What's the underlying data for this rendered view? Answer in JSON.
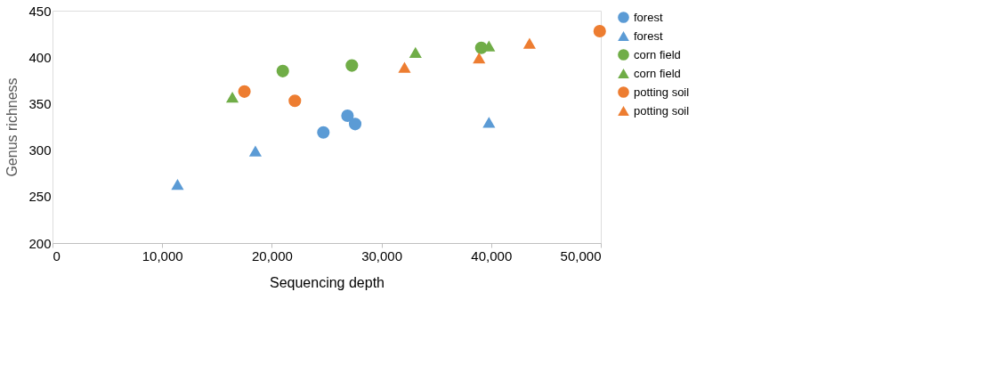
{
  "chart_data": {
    "type": "scatter",
    "xlabel": "Sequencing depth",
    "ylabel": "Genus richness",
    "xlim": [
      0,
      50000
    ],
    "xticks": [
      {
        "value": 0,
        "label": "0"
      },
      {
        "value": 10000,
        "label": "10,000"
      },
      {
        "value": 20000,
        "label": "20,000"
      },
      {
        "value": 30000,
        "label": "30,000"
      },
      {
        "value": 40000,
        "label": "40,000"
      },
      {
        "value": 50000,
        "label": "50,000"
      }
    ],
    "ylim": [
      200,
      450
    ],
    "yticks": [
      200,
      250,
      300,
      350,
      400,
      450
    ],
    "grid": false,
    "legend": "right",
    "series": [
      {
        "name": "forest",
        "color": "#5b9bd5",
        "marker": "circle",
        "x": [
          24700,
          26900,
          27600
        ],
        "values": [
          319,
          337,
          328
        ]
      },
      {
        "name": "forest",
        "color": "#5b9bd5",
        "marker": "triangle",
        "x": [
          11400,
          18500,
          39800
        ],
        "values": [
          263,
          299,
          330
        ]
      },
      {
        "name": "corn field",
        "color": "#70ad47",
        "marker": "circle",
        "x": [
          21000,
          27300,
          39100
        ],
        "values": [
          385,
          391,
          410
        ]
      },
      {
        "name": "corn field",
        "color": "#70ad47",
        "marker": "triangle",
        "x": [
          16400,
          33100,
          39800
        ],
        "values": [
          357,
          405,
          412
        ]
      },
      {
        "name": "potting soil",
        "color": "#ed7d31",
        "marker": "circle",
        "x": [
          17500,
          22100,
          49900
        ],
        "values": [
          363,
          353,
          428
        ]
      },
      {
        "name": "potting soil",
        "color": "#ed7d31",
        "marker": "triangle",
        "x": [
          32100,
          38900,
          43500
        ],
        "values": [
          389,
          399,
          415
        ]
      }
    ]
  }
}
